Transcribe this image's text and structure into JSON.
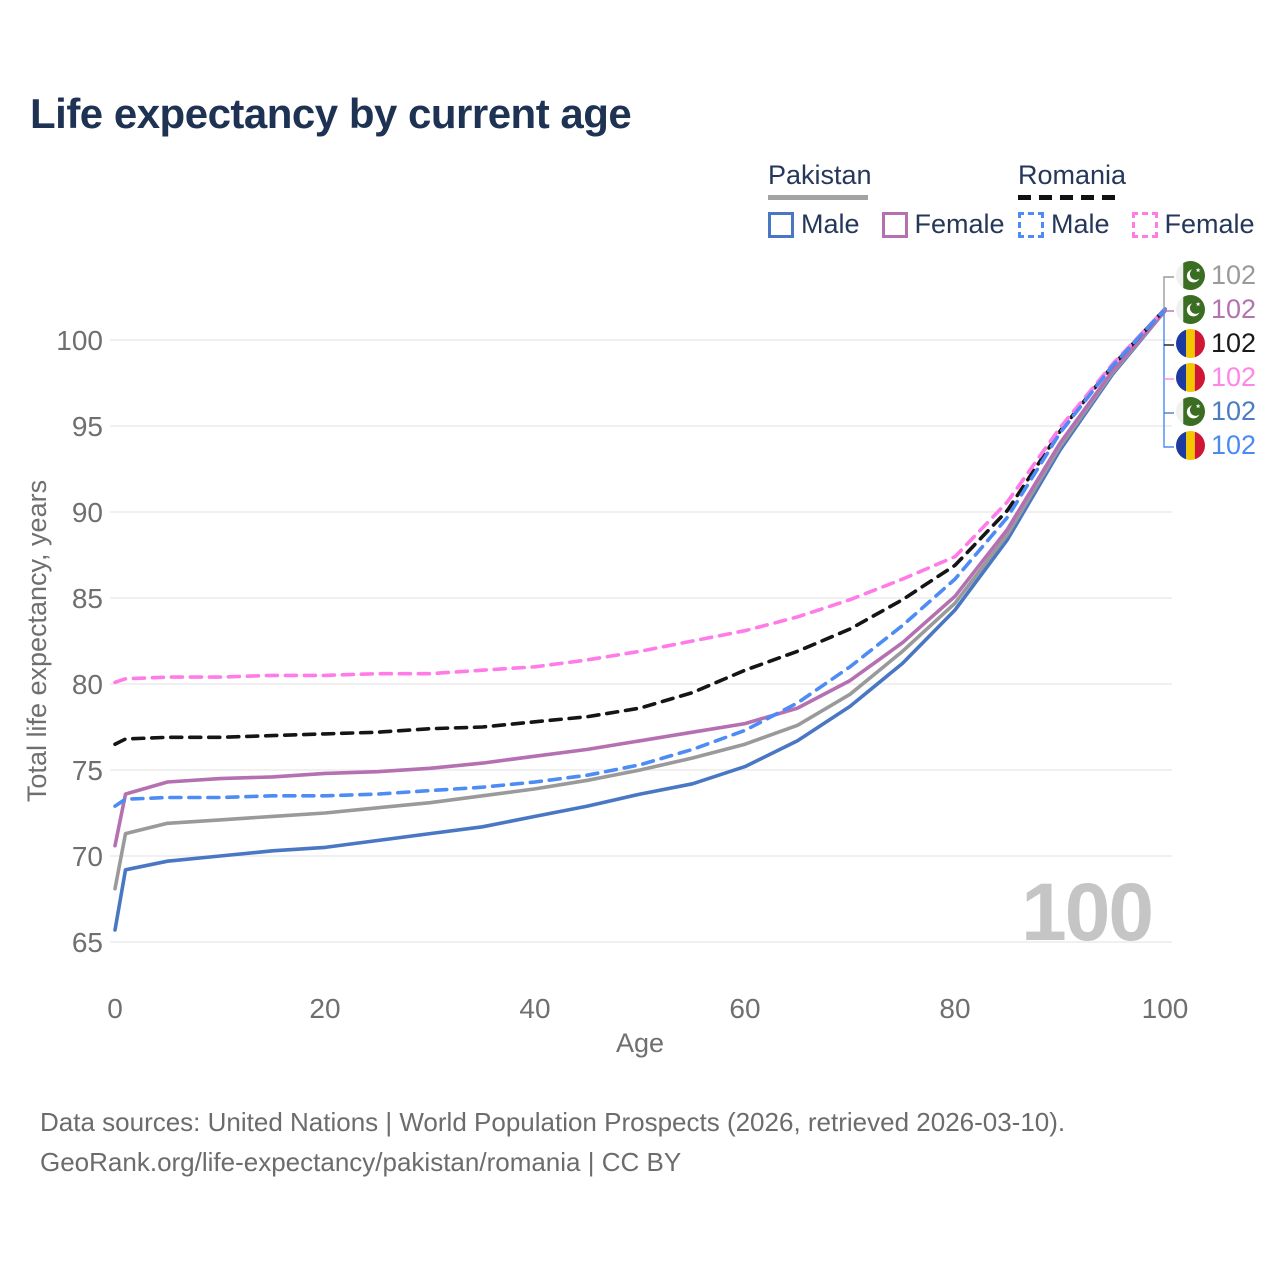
{
  "title": "Life expectancy by current age",
  "legend": {
    "groups": [
      {
        "name": "Pakistan",
        "line_style": "solid",
        "underline_color": "#a3a3a3",
        "items": [
          {
            "label": "Male",
            "color": "#4a77c4"
          },
          {
            "label": "Female",
            "color": "#b570b2"
          }
        ]
      },
      {
        "name": "Romania",
        "line_style": "dashed",
        "underline_color": "#111111",
        "items": [
          {
            "label": "Male",
            "color": "#4d8cf5"
          },
          {
            "label": "Female",
            "color": "#ff7ce8"
          }
        ]
      }
    ]
  },
  "endpoint_labels": [
    {
      "flag": "pakistan",
      "value": "102",
      "color": "#9a9a9a",
      "series": "Pakistan"
    },
    {
      "flag": "pakistan",
      "value": "102",
      "color": "#b273ae",
      "series": "Pakistan Female"
    },
    {
      "flag": "romania",
      "value": "102",
      "color": "#1a1a1a",
      "series": "Romania"
    },
    {
      "flag": "romania",
      "value": "102",
      "color": "#ff85e8",
      "series": "Romania Female"
    },
    {
      "flag": "pakistan",
      "value": "102",
      "color": "#4a7dc1",
      "series": "Pakistan Male"
    },
    {
      "flag": "romania",
      "value": "102",
      "color": "#4b8bf0",
      "series": "Romania Male"
    }
  ],
  "watermark_age": "100",
  "footer": {
    "line1": "Data sources: United Nations | World Population Prospects (2026, retrieved 2026-03-10).",
    "line2": "GeoRank.org/life-expectancy/pakistan/romania | CC BY"
  },
  "chart_data": {
    "type": "line",
    "title": "Life expectancy by current age",
    "xlabel": "Age",
    "ylabel": "Total life expectancy, years",
    "x_ticks": [
      0,
      20,
      40,
      60,
      80,
      100
    ],
    "y_ticks": [
      65,
      70,
      75,
      80,
      85,
      90,
      95,
      100
    ],
    "xlim": [
      0,
      100
    ],
    "ylim": [
      63.5,
      103.5
    ],
    "grid": "horizontal",
    "legend_position": "top-right",
    "ages": [
      0,
      1,
      5,
      10,
      15,
      20,
      25,
      30,
      35,
      40,
      45,
      50,
      55,
      60,
      65,
      70,
      75,
      80,
      85,
      90,
      95,
      100
    ],
    "series": [
      {
        "name": "Pakistan Male",
        "country": "Pakistan",
        "sex": "male",
        "color": "#4a77c4",
        "dash": "solid",
        "values": [
          65.7,
          69.2,
          69.7,
          70.0,
          70.3,
          70.5,
          70.9,
          71.3,
          71.7,
          72.3,
          72.9,
          73.6,
          74.2,
          75.2,
          76.7,
          78.7,
          81.2,
          84.3,
          88.4,
          93.6,
          98.0,
          101.7
        ]
      },
      {
        "name": "Pakistan",
        "country": "Pakistan",
        "sex": "both",
        "color": "#9a9a9a",
        "dash": "solid",
        "values": [
          68.1,
          71.3,
          71.9,
          72.1,
          72.3,
          72.5,
          72.8,
          73.1,
          73.5,
          73.9,
          74.4,
          75.0,
          75.7,
          76.5,
          77.6,
          79.4,
          81.9,
          84.7,
          88.7,
          93.8,
          98.1,
          101.7
        ]
      },
      {
        "name": "Pakistan Female",
        "country": "Pakistan",
        "sex": "female",
        "color": "#b570b2",
        "dash": "solid",
        "values": [
          70.6,
          73.6,
          74.3,
          74.5,
          74.6,
          74.8,
          74.9,
          75.1,
          75.4,
          75.8,
          76.2,
          76.7,
          77.2,
          77.7,
          78.6,
          80.2,
          82.4,
          85.1,
          89.0,
          94.0,
          98.2,
          101.7
        ]
      },
      {
        "name": "Romania",
        "country": "Romania",
        "sex": "both",
        "color": "#151515",
        "dash": "dashed",
        "values": [
          76.5,
          76.8,
          76.9,
          76.9,
          77.0,
          77.1,
          77.2,
          77.4,
          77.5,
          77.8,
          78.1,
          78.6,
          79.5,
          80.8,
          81.9,
          83.2,
          84.9,
          86.9,
          90.1,
          94.7,
          98.5,
          101.8
        ]
      },
      {
        "name": "Romania Female",
        "country": "Romania",
        "sex": "female",
        "color": "#ff7ce8",
        "dash": "dashed",
        "values": [
          80.1,
          80.3,
          80.4,
          80.4,
          80.5,
          80.5,
          80.6,
          80.6,
          80.8,
          81.0,
          81.4,
          81.9,
          82.5,
          83.1,
          83.9,
          84.9,
          86.1,
          87.4,
          90.6,
          94.9,
          98.6,
          101.8
        ]
      },
      {
        "name": "Romania Male",
        "country": "Romania",
        "sex": "male",
        "color": "#4d8cf5",
        "dash": "dashed",
        "values": [
          72.9,
          73.3,
          73.4,
          73.4,
          73.5,
          73.5,
          73.6,
          73.8,
          74.0,
          74.3,
          74.7,
          75.3,
          76.2,
          77.3,
          78.9,
          81.0,
          83.4,
          86.1,
          89.7,
          94.6,
          98.5,
          101.8
        ]
      }
    ],
    "end_value_all_series": 102
  }
}
